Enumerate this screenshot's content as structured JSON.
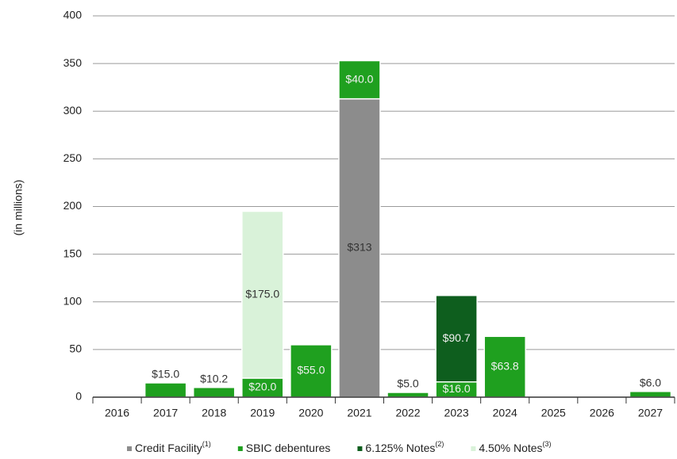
{
  "chart_data": {
    "type": "bar",
    "stacked": true,
    "y_axis_label": "(in millions)",
    "categories": [
      "2016",
      "2017",
      "2018",
      "2019",
      "2020",
      "2021",
      "2022",
      "2023",
      "2024",
      "2025",
      "2026",
      "2027"
    ],
    "series": [
      {
        "name": "Credit Facility",
        "footnote": "(1)",
        "color": "#8c8c8c",
        "values": [
          null,
          null,
          null,
          null,
          null,
          313,
          null,
          null,
          null,
          null,
          null,
          null
        ],
        "value_labels": [
          null,
          null,
          null,
          null,
          null,
          "$313",
          null,
          null,
          null,
          null,
          null,
          null
        ]
      },
      {
        "name": "SBIC debentures",
        "color": "#1fa01f",
        "values": [
          null,
          15.0,
          10.2,
          20.0,
          55.0,
          40.0,
          5.0,
          16.0,
          63.8,
          null,
          null,
          6.0
        ],
        "value_labels": [
          null,
          "$15.0",
          "$10.2",
          "$20.0",
          "$55.0",
          "$40.0",
          "$5.0",
          "$16.0",
          "$63.8",
          null,
          null,
          "$6.0"
        ]
      },
      {
        "name": "6.125% Notes",
        "footnote": "(2)",
        "color": "#0e5e1e",
        "values": [
          null,
          null,
          null,
          null,
          null,
          null,
          null,
          90.7,
          null,
          null,
          null,
          null
        ],
        "value_labels": [
          null,
          null,
          null,
          null,
          null,
          null,
          null,
          "$90.7",
          null,
          null,
          null,
          null
        ]
      },
      {
        "name": "4.50% Notes",
        "footnote": "(3)",
        "color": "#d9f2d9",
        "values": [
          null,
          null,
          null,
          175.0,
          null,
          null,
          null,
          null,
          null,
          null,
          null,
          null
        ],
        "value_labels": [
          null,
          null,
          null,
          "$175.0",
          null,
          null,
          null,
          null,
          null,
          null,
          null,
          null
        ]
      }
    ],
    "ylim": [
      0,
      400
    ],
    "yticks": [
      0,
      50,
      100,
      150,
      200,
      250,
      300,
      350,
      400
    ],
    "grid": true
  }
}
